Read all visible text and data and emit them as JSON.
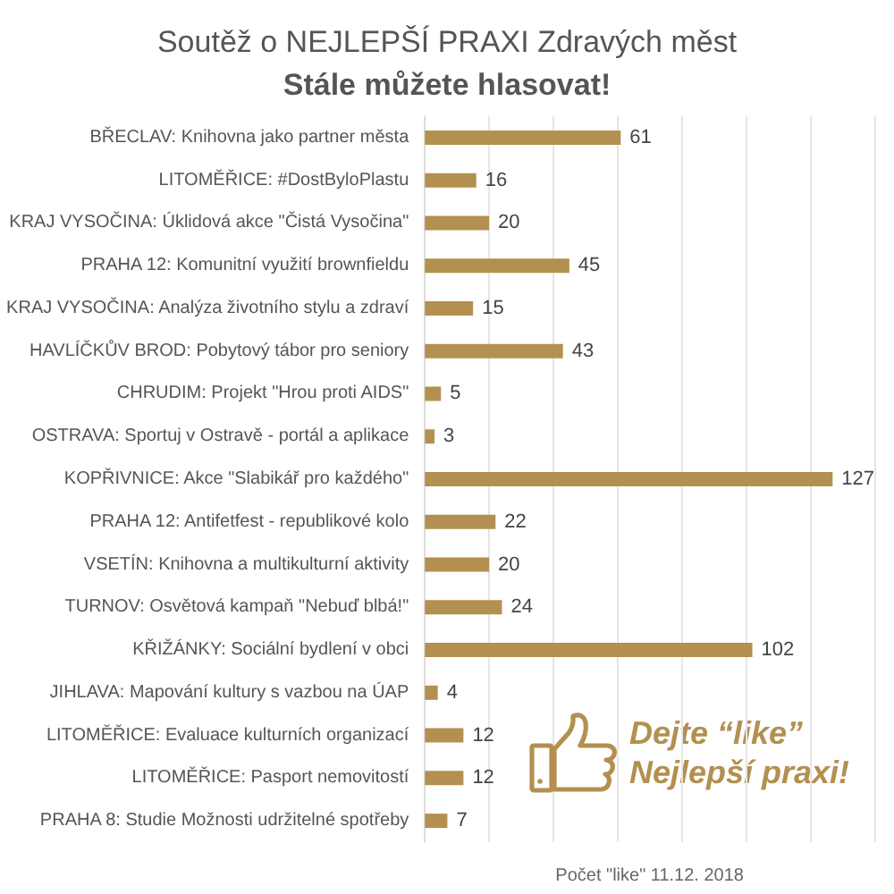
{
  "chart_data": {
    "type": "bar",
    "orientation": "horizontal",
    "title": "Soutěž o NEJLEPŠÍ PRAXI Zdravých měst",
    "subtitle": "Stále můžete hlasovat!",
    "xlabel": "Počet \"like\" 11.12. 2018",
    "categories": [
      "BŘECLAV: Knihovna jako partner města",
      "LITOMĚŘICE: #DostByloPlastu",
      "KRAJ VYSOČINA: Úklidová akce \"Čistá Vysočina\"",
      "PRAHA 12: Komunitní využití brownfieldu",
      "KRAJ VYSOČINA: Analýza životního stylu a zdraví",
      "HAVLÍČKŮV BROD: Pobytový tábor pro seniory",
      "CHRUDIM: Projekt \"Hrou proti AIDS\"",
      "OSTRAVA: Sportuj v Ostravě - portál a aplikace",
      "KOPŘIVNICE: Akce \"Slabikář pro každého\"",
      "PRAHA 12: Antifetfest - republikové kolo",
      "VSETÍN: Knihovna a multikulturní aktivity",
      "TURNOV: Osvětová kampaň \"Nebuď blbá!\"",
      "KŘIŽÁNKY: Sociální bydlení v obci",
      "JIHLAVA: Mapování kultury s vazbou na ÚAP",
      "LITOMĚŘICE: Evaluace kulturních organizací",
      "LITOMĚŘICE: Pasport nemovitostí",
      "PRAHA 8: Studie Možnosti udržitelné spotřeby"
    ],
    "values": [
      61,
      16,
      20,
      45,
      15,
      43,
      5,
      3,
      127,
      22,
      20,
      24,
      102,
      4,
      12,
      12,
      7
    ],
    "color": "#b3904f",
    "xlim": [
      0,
      140
    ],
    "xticks": [
      {
        "value": 0,
        "label": null
      },
      {
        "value": 20,
        "label": null
      },
      {
        "value": 40,
        "label": null
      },
      {
        "value": 60,
        "label": null
      },
      {
        "value": 80,
        "label": null
      },
      {
        "value": 100,
        "label": null
      },
      {
        "value": 120,
        "label": null
      },
      {
        "value": 140,
        "label": null
      }
    ],
    "tick_labels": "y",
    "grid": "x",
    "data_labels": true,
    "annotations": [
      "Dejte “like” Nejlepší praxi!"
    ]
  }
}
